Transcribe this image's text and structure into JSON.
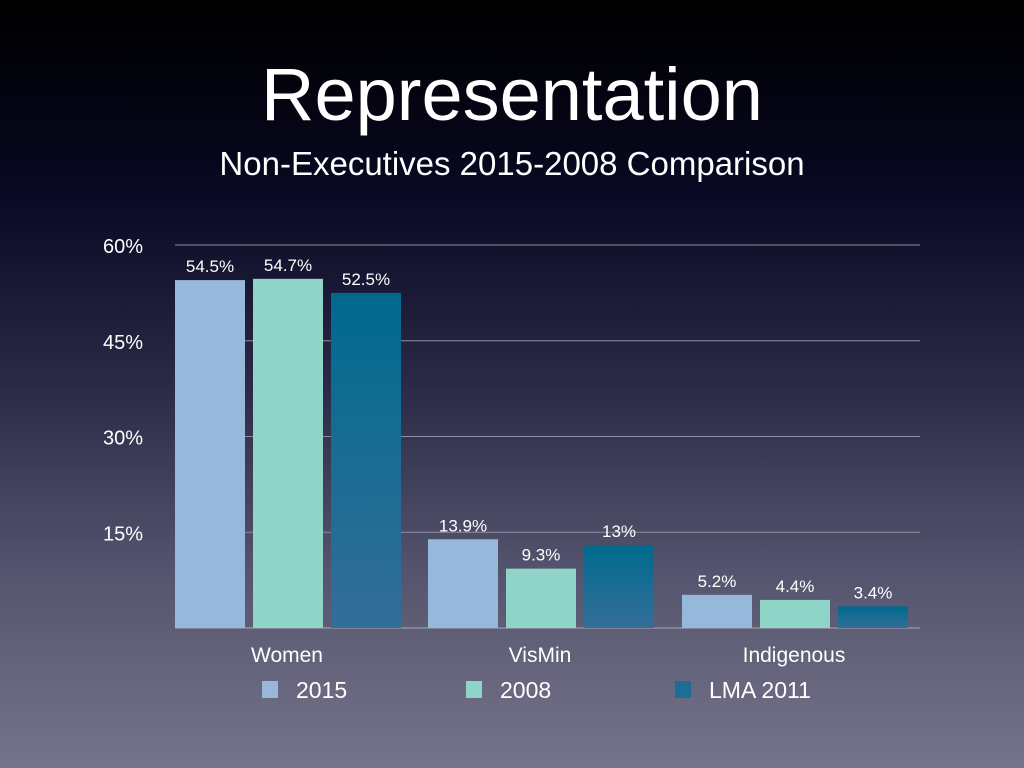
{
  "chart_data": {
    "type": "bar",
    "title": "Representation",
    "subtitle": "Non-Executives 2015-2008 Comparison",
    "categories": [
      "Women",
      "VisMin",
      "Indigenous"
    ],
    "series": [
      {
        "name": "2015",
        "values": [
          54.5,
          13.9,
          5.2
        ],
        "labels": [
          "54.5%",
          "13.9%",
          "5.2%"
        ],
        "color": "#96b9db"
      },
      {
        "name": "2008",
        "values": [
          54.7,
          9.3,
          4.4
        ],
        "labels": [
          "54.7%",
          "9.3%",
          "4.4%"
        ],
        "color": "#8fd4c6"
      },
      {
        "name": "LMA 2011",
        "values": [
          52.5,
          13,
          3.4
        ],
        "labels": [
          "52.5%",
          "13%",
          "3.4%"
        ],
        "color": "#1a6e98"
      }
    ],
    "yticks": [
      15,
      30,
      45,
      60
    ],
    "ytick_labels": [
      "15%",
      "30%",
      "45%",
      "60%"
    ],
    "ylim": [
      0,
      60
    ],
    "grid": true,
    "legend_position": "bottom"
  }
}
